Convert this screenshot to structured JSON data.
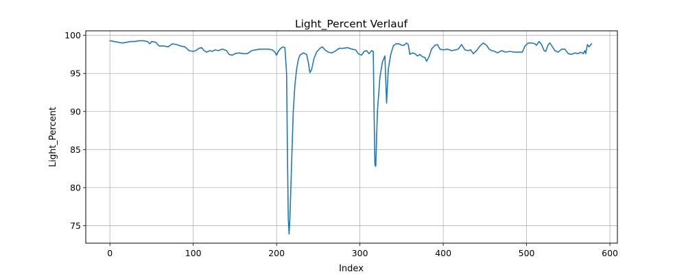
{
  "chart_data": {
    "type": "line",
    "title": "Light_Percent Verlauf",
    "xlabel": "Index",
    "ylabel": "Light_Percent",
    "xlim": [
      -29,
      609
    ],
    "ylim": [
      72.7,
      100.6
    ],
    "xticks": [
      0,
      100,
      200,
      300,
      400,
      500,
      600
    ],
    "yticks": [
      75,
      80,
      85,
      90,
      95,
      100
    ],
    "grid": true,
    "line_color": "#1f77b4",
    "series": [
      {
        "points": [
          [
            0,
            99.3
          ],
          [
            5,
            99.2
          ],
          [
            10,
            99.1
          ],
          [
            15,
            99.0
          ],
          [
            20,
            99.1
          ],
          [
            25,
            99.2
          ],
          [
            30,
            99.2
          ],
          [
            35,
            99.3
          ],
          [
            40,
            99.3
          ],
          [
            45,
            99.2
          ],
          [
            48,
            98.9
          ],
          [
            50,
            99.2
          ],
          [
            55,
            99.1
          ],
          [
            58,
            98.7
          ],
          [
            60,
            98.6
          ],
          [
            65,
            98.6
          ],
          [
            70,
            98.5
          ],
          [
            75,
            98.9
          ],
          [
            80,
            98.8
          ],
          [
            85,
            98.6
          ],
          [
            90,
            98.5
          ],
          [
            95,
            98.0
          ],
          [
            100,
            97.9
          ],
          [
            103,
            98.0
          ],
          [
            107,
            98.3
          ],
          [
            110,
            98.4
          ],
          [
            113,
            98.0
          ],
          [
            116,
            97.8
          ],
          [
            120,
            98.0
          ],
          [
            123,
            97.9
          ],
          [
            126,
            98.1
          ],
          [
            130,
            98.0
          ],
          [
            135,
            98.2
          ],
          [
            140,
            98.0
          ],
          [
            143,
            97.5
          ],
          [
            147,
            97.4
          ],
          [
            150,
            97.6
          ],
          [
            155,
            97.7
          ],
          [
            160,
            97.6
          ],
          [
            165,
            97.6
          ],
          [
            170,
            98.0
          ],
          [
            175,
            98.1
          ],
          [
            180,
            98.2
          ],
          [
            185,
            98.2
          ],
          [
            190,
            98.2
          ],
          [
            195,
            98.1
          ],
          [
            198,
            97.8
          ],
          [
            200,
            97.4
          ],
          [
            202,
            97.9
          ],
          [
            205,
            98.3
          ],
          [
            208,
            98.5
          ],
          [
            210,
            98.4
          ],
          [
            212,
            95.0
          ],
          [
            213,
            85.0
          ],
          [
            214,
            76.0
          ],
          [
            215,
            73.9
          ],
          [
            216,
            76.0
          ],
          [
            218,
            83.0
          ],
          [
            220,
            90.0
          ],
          [
            222,
            93.5
          ],
          [
            224,
            95.5
          ],
          [
            226,
            96.8
          ],
          [
            228,
            97.4
          ],
          [
            232,
            97.7
          ],
          [
            236,
            97.5
          ],
          [
            238,
            96.5
          ],
          [
            240,
            95.1
          ],
          [
            242,
            95.5
          ],
          [
            245,
            97.0
          ],
          [
            248,
            97.8
          ],
          [
            252,
            98.3
          ],
          [
            255,
            98.5
          ],
          [
            258,
            98.1
          ],
          [
            262,
            97.8
          ],
          [
            266,
            97.7
          ],
          [
            270,
            97.9
          ],
          [
            275,
            98.3
          ],
          [
            280,
            98.3
          ],
          [
            285,
            98.4
          ],
          [
            290,
            98.2
          ],
          [
            295,
            98.1
          ],
          [
            298,
            97.6
          ],
          [
            302,
            97.4
          ],
          [
            305,
            97.9
          ],
          [
            308,
            98.0
          ],
          [
            311,
            97.6
          ],
          [
            314,
            98.0
          ],
          [
            316,
            97.9
          ],
          [
            317,
            90.0
          ],
          [
            318,
            83.0
          ],
          [
            319,
            82.8
          ],
          [
            321,
            90.0
          ],
          [
            324,
            94.5
          ],
          [
            327,
            96.5
          ],
          [
            330,
            97.3
          ],
          [
            332,
            91.1
          ],
          [
            334,
            95.5
          ],
          [
            337,
            97.5
          ],
          [
            340,
            98.6
          ],
          [
            343,
            98.9
          ],
          [
            347,
            98.9
          ],
          [
            350,
            98.7
          ],
          [
            353,
            98.7
          ],
          [
            356,
            99.0
          ],
          [
            358,
            98.8
          ],
          [
            360,
            97.5
          ],
          [
            363,
            97.7
          ],
          [
            366,
            97.6
          ],
          [
            369,
            97.3
          ],
          [
            372,
            97.5
          ],
          [
            375,
            97.2
          ],
          [
            378,
            97.1
          ],
          [
            380,
            96.6
          ],
          [
            383,
            97.2
          ],
          [
            386,
            98.2
          ],
          [
            390,
            98.7
          ],
          [
            393,
            98.8
          ],
          [
            396,
            98.2
          ],
          [
            400,
            98.1
          ],
          [
            405,
            98.2
          ],
          [
            410,
            98.0
          ],
          [
            415,
            98.1
          ],
          [
            418,
            98.2
          ],
          [
            422,
            98.8
          ],
          [
            426,
            98.1
          ],
          [
            430,
            98.0
          ],
          [
            433,
            98.1
          ],
          [
            436,
            97.6
          ],
          [
            440,
            98.0
          ],
          [
            444,
            98.6
          ],
          [
            448,
            99.0
          ],
          [
            452,
            98.7
          ],
          [
            455,
            98.2
          ],
          [
            458,
            98.0
          ],
          [
            462,
            97.9
          ],
          [
            465,
            97.7
          ],
          [
            470,
            98.0
          ],
          [
            475,
            97.8
          ],
          [
            480,
            97.9
          ],
          [
            485,
            97.8
          ],
          [
            490,
            97.8
          ],
          [
            495,
            97.8
          ],
          [
            498,
            98.6
          ],
          [
            502,
            99.0
          ],
          [
            506,
            99.0
          ],
          [
            510,
            98.9
          ],
          [
            512,
            98.7
          ],
          [
            515,
            99.2
          ],
          [
            518,
            98.8
          ],
          [
            521,
            98.0
          ],
          [
            523,
            97.9
          ],
          [
            526,
            98.8
          ],
          [
            528,
            99.0
          ],
          [
            531,
            98.5
          ],
          [
            534,
            98.0
          ],
          [
            538,
            97.8
          ],
          [
            542,
            98.2
          ],
          [
            546,
            98.2
          ],
          [
            550,
            97.6
          ],
          [
            554,
            97.5
          ],
          [
            558,
            97.7
          ],
          [
            562,
            97.6
          ],
          [
            565,
            97.8
          ],
          [
            568,
            97.6
          ],
          [
            570,
            98.0
          ],
          [
            571,
            97.6
          ],
          [
            573,
            98.8
          ],
          [
            575,
            98.5
          ],
          [
            578,
            98.9
          ]
        ]
      }
    ]
  }
}
